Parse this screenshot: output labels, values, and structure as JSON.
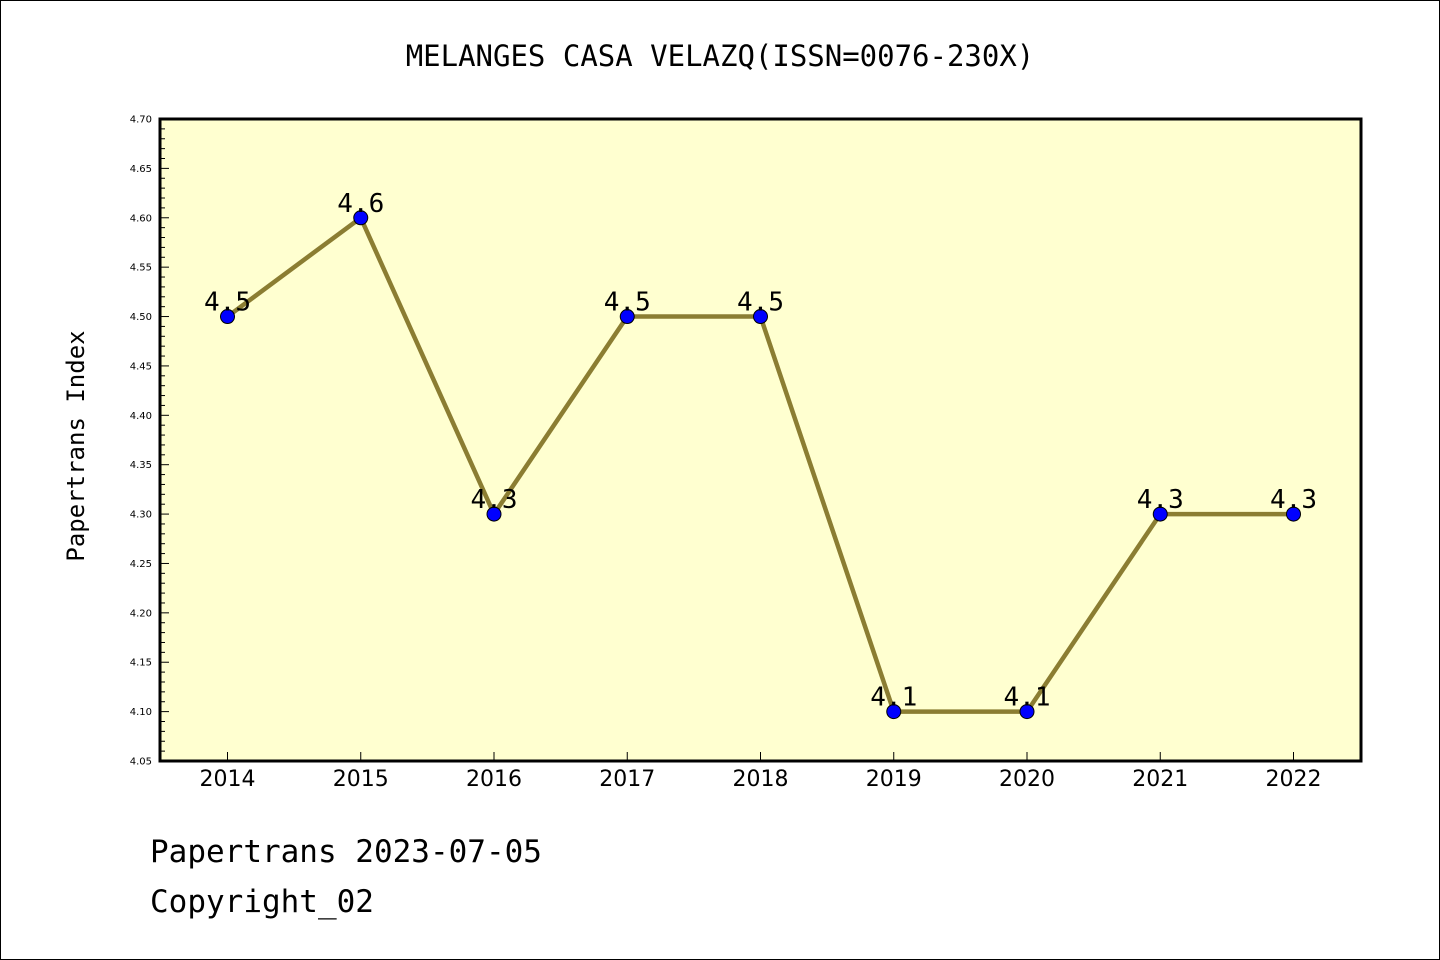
{
  "chart_data": {
    "type": "line",
    "title": "MELANGES CASA VELAZQ(ISSN=0076-230X)",
    "xlabel": "",
    "ylabel": "Papertrans Index",
    "categories": [
      "2014",
      "2015",
      "2016",
      "2017",
      "2018",
      "2019",
      "2020",
      "2021",
      "2022"
    ],
    "series": [
      {
        "values": [
          4.5,
          4.6,
          4.3,
          4.5,
          4.5,
          4.1,
          4.1,
          4.3,
          4.3
        ],
        "data_labels": [
          "4.5",
          "4.6",
          "4.3",
          "4.5",
          "4.5",
          "4.1",
          "4.1",
          "4.3",
          "4.3"
        ]
      }
    ],
    "ylim": [
      4.05,
      4.7
    ],
    "yticks": [
      "4.05",
      "4.10",
      "4.15",
      "4.20",
      "4.25",
      "4.30",
      "4.35",
      "4.40",
      "4.45",
      "4.50",
      "4.55",
      "4.60",
      "4.65",
      "4.70"
    ],
    "grid": false,
    "legend": "none",
    "colors": {
      "plot_background": "#ffffd0",
      "line": "#8b7d32",
      "marker": "#0000ff",
      "axis": "#000000"
    }
  },
  "footer": {
    "line1": "Papertrans 2023-07-05",
    "line2": "Copyright_02"
  }
}
